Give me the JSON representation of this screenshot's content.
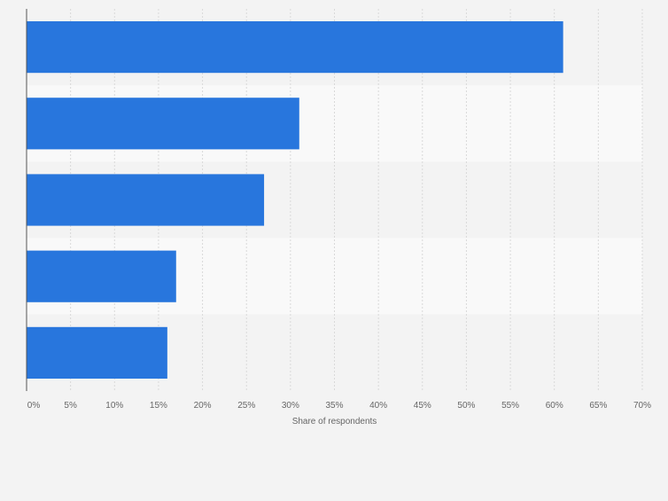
{
  "chart_data": {
    "type": "bar",
    "orientation": "horizontal",
    "categories": [
      "",
      "",
      "",
      "",
      ""
    ],
    "values": [
      61,
      31,
      27,
      17,
      16
    ],
    "value_unit": "%",
    "xlabel": "Share of respondents",
    "ylabel": "",
    "xlim": [
      0,
      70
    ],
    "xticks": [
      "0%",
      "5%",
      "10%",
      "15%",
      "20%",
      "25%",
      "30%",
      "35%",
      "40%",
      "45%",
      "50%",
      "55%",
      "60%",
      "65%",
      "70%"
    ],
    "grid": "vertical dashed",
    "colors": {
      "bar": "#2876dd",
      "band_light": "#f9f9f9",
      "band_dark": "#f3f3f3",
      "grid": "#d9d9d9",
      "axis": "#555555",
      "tick_text": "#666666"
    }
  }
}
